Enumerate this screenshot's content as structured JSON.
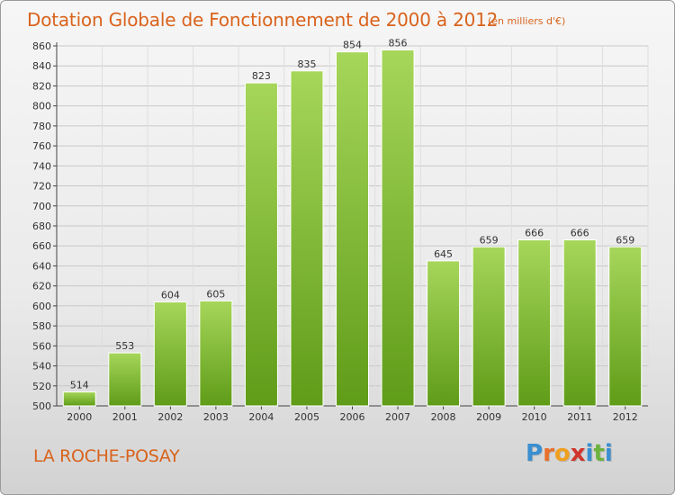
{
  "header": {
    "title": "Dotation Globale de Fonctionnement de 2000 à 2012",
    "subtitle": "(en milliers d'€)"
  },
  "footer": {
    "commune": "LA ROCHE-POSAY",
    "logo": {
      "text": "Proxiti",
      "letters": [
        {
          "char": "P",
          "color": "#3a8fd0"
        },
        {
          "char": "r",
          "color": "#e8702a"
        },
        {
          "char": "o",
          "color": "#f0a020"
        },
        {
          "char": "x",
          "color": "#d0342c"
        },
        {
          "char": "i",
          "color": "#3a8fd0"
        },
        {
          "char": "t",
          "color": "#6cb33e"
        },
        {
          "char": "i",
          "color": "#3a8fd0"
        }
      ]
    }
  },
  "colors": {
    "bar_light": "#a6d65a",
    "bar_dark": "#5f9c18",
    "title": "#d9631c",
    "grid": "#c8c8c8"
  },
  "chart_data": {
    "type": "bar",
    "categories": [
      "2000",
      "2001",
      "2002",
      "2003",
      "2004",
      "2005",
      "2006",
      "2007",
      "2008",
      "2009",
      "2010",
      "2011",
      "2012"
    ],
    "values": [
      514,
      553,
      604,
      605,
      823,
      835,
      854,
      856,
      645,
      659,
      666,
      666,
      659
    ],
    "ylim": [
      500,
      860
    ],
    "yticks": [
      500,
      520,
      540,
      560,
      580,
      600,
      620,
      640,
      660,
      680,
      700,
      720,
      740,
      760,
      780,
      800,
      820,
      840,
      860
    ],
    "grid": true
  }
}
